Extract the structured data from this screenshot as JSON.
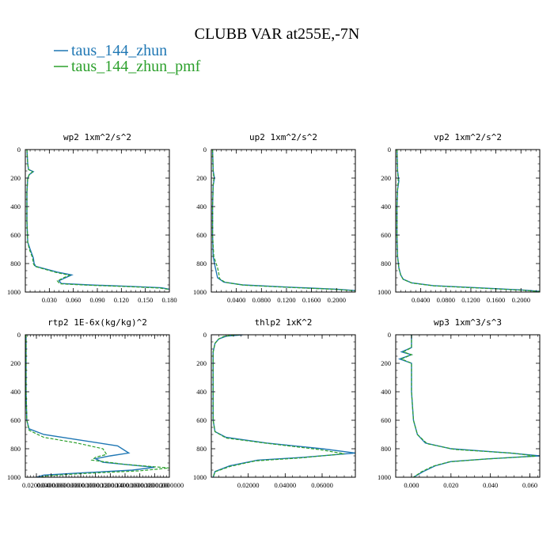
{
  "figure": {
    "title": "CLUBB VAR at255E,-7N",
    "legend": [
      {
        "label": "taus_144_zhun",
        "color": "#1f77b4",
        "dash": "solid"
      },
      {
        "label": "taus_144_zhun_pmf",
        "color": "#2ca02c",
        "dash": "dashed"
      }
    ]
  },
  "chart_data": [
    {
      "type": "line",
      "title": "wp2  1xm^2/s^2",
      "xlim": [
        0,
        0.18
      ],
      "ylim": [
        1000,
        0
      ],
      "y_inverted": true,
      "xticks": [
        0.03,
        0.06,
        0.09,
        0.12,
        0.15,
        0.18
      ],
      "xtick_labels": [
        "0.030",
        "0.060",
        "0.090",
        "0.120",
        "0.150",
        "0.180"
      ],
      "yticks": [
        0,
        200,
        400,
        600,
        800,
        1000
      ],
      "ytick_labels": [
        "0",
        "200",
        "400",
        "600",
        "800",
        "1000"
      ],
      "series": [
        {
          "name": "taus_144_zhun",
          "points": [
            [
              0.002,
              0
            ],
            [
              0.003,
              100
            ],
            [
              0.004,
              140
            ],
            [
              0.01,
              155
            ],
            [
              0.005,
              175
            ],
            [
              0.003,
              200
            ],
            [
              0.002,
              300
            ],
            [
              0.002,
              500
            ],
            [
              0.003,
              650
            ],
            [
              0.006,
              700
            ],
            [
              0.01,
              760
            ],
            [
              0.011,
              800
            ],
            [
              0.013,
              820
            ],
            [
              0.04,
              860
            ],
            [
              0.058,
              880
            ],
            [
              0.05,
              900
            ],
            [
              0.042,
              920
            ],
            [
              0.045,
              940
            ],
            [
              0.08,
              950
            ],
            [
              0.13,
              960
            ],
            [
              0.17,
              970
            ],
            [
              0.18,
              980
            ]
          ]
        },
        {
          "name": "taus_144_zhun_pmf",
          "points": [
            [
              0.002,
              0
            ],
            [
              0.003,
              100
            ],
            [
              0.004,
              140
            ],
            [
              0.009,
              155
            ],
            [
              0.005,
              175
            ],
            [
              0.003,
              200
            ],
            [
              0.002,
              300
            ],
            [
              0.002,
              500
            ],
            [
              0.003,
              650
            ],
            [
              0.005,
              700
            ],
            [
              0.009,
              760
            ],
            [
              0.01,
              800
            ],
            [
              0.012,
              820
            ],
            [
              0.038,
              862
            ],
            [
              0.055,
              882
            ],
            [
              0.047,
              902
            ],
            [
              0.04,
              922
            ],
            [
              0.043,
              942
            ],
            [
              0.078,
              952
            ],
            [
              0.128,
              962
            ],
            [
              0.168,
              972
            ],
            [
              0.18,
              982
            ]
          ]
        }
      ]
    },
    {
      "type": "line",
      "title": "up2  1xm^2/s^2",
      "xlim": [
        0,
        0.23
      ],
      "ylim": [
        1000,
        0
      ],
      "y_inverted": true,
      "xticks": [
        0.04,
        0.08,
        0.12,
        0.16,
        0.2
      ],
      "xtick_labels": [
        "0.0400",
        "0.0800",
        "0.1200",
        "0.1600",
        "0.2000"
      ],
      "yticks": [
        0,
        200,
        400,
        600,
        800,
        1000
      ],
      "ytick_labels": [
        "0",
        "200",
        "400",
        "600",
        "800",
        "1000"
      ],
      "series": [
        {
          "name": "taus_144_zhun",
          "points": [
            [
              0.002,
              0
            ],
            [
              0.003,
              150
            ],
            [
              0.005,
              200
            ],
            [
              0.003,
              250
            ],
            [
              0.002,
              400
            ],
            [
              0.002,
              600
            ],
            [
              0.003,
              750
            ],
            [
              0.006,
              820
            ],
            [
              0.008,
              860
            ],
            [
              0.01,
              900
            ],
            [
              0.02,
              930
            ],
            [
              0.05,
              950
            ],
            [
              0.12,
              965
            ],
            [
              0.2,
              980
            ],
            [
              0.23,
              990
            ]
          ]
        },
        {
          "name": "taus_144_zhun_pmf",
          "points": [
            [
              0.002,
              0
            ],
            [
              0.003,
              150
            ],
            [
              0.004,
              200
            ],
            [
              0.003,
              250
            ],
            [
              0.002,
              400
            ],
            [
              0.002,
              600
            ],
            [
              0.004,
              750
            ],
            [
              0.01,
              830
            ],
            [
              0.012,
              870
            ],
            [
              0.013,
              905
            ],
            [
              0.022,
              932
            ],
            [
              0.052,
              952
            ],
            [
              0.122,
              967
            ],
            [
              0.202,
              982
            ],
            [
              0.23,
              992
            ]
          ]
        }
      ]
    },
    {
      "type": "line",
      "title": "vp2  1xm^2/s^2",
      "xlim": [
        0,
        0.23
      ],
      "ylim": [
        1000,
        0
      ],
      "y_inverted": true,
      "xticks": [
        0.04,
        0.08,
        0.12,
        0.16,
        0.2
      ],
      "xtick_labels": [
        "0.0400",
        "0.0800",
        "0.1200",
        "0.1600",
        "0.2000"
      ],
      "yticks": [
        0,
        200,
        400,
        600,
        800,
        1000
      ],
      "ytick_labels": [
        "0",
        "200",
        "400",
        "600",
        "800",
        "1000"
      ],
      "series": [
        {
          "name": "taus_144_zhun",
          "points": [
            [
              0.002,
              0
            ],
            [
              0.003,
              150
            ],
            [
              0.005,
              220
            ],
            [
              0.003,
              280
            ],
            [
              0.002,
              400
            ],
            [
              0.002,
              600
            ],
            [
              0.003,
              750
            ],
            [
              0.005,
              830
            ],
            [
              0.008,
              880
            ],
            [
              0.012,
              910
            ],
            [
              0.025,
              935
            ],
            [
              0.06,
              955
            ],
            [
              0.13,
              970
            ],
            [
              0.2,
              985
            ],
            [
              0.23,
              995
            ]
          ]
        },
        {
          "name": "taus_144_zhun_pmf",
          "points": [
            [
              0.002,
              0
            ],
            [
              0.003,
              150
            ],
            [
              0.004,
              220
            ],
            [
              0.003,
              280
            ],
            [
              0.002,
              400
            ],
            [
              0.002,
              600
            ],
            [
              0.003,
              750
            ],
            [
              0.005,
              832
            ],
            [
              0.008,
              882
            ],
            [
              0.012,
              912
            ],
            [
              0.026,
              937
            ],
            [
              0.062,
              957
            ],
            [
              0.132,
              972
            ],
            [
              0.202,
              987
            ],
            [
              0.23,
              997
            ]
          ]
        }
      ]
    },
    {
      "type": "line",
      "title": "rtp2  1E-6x(kg/kg)^2",
      "xlim": [
        0.005,
        0.2
      ],
      "ylim": [
        1000,
        0
      ],
      "y_inverted": true,
      "xticks": [
        0.02,
        0.04,
        0.06,
        0.08,
        0.1,
        0.12,
        0.14,
        0.16,
        0.18,
        0.2
      ],
      "xtick_labels": [
        "0.0200000",
        "0.0400000",
        "0.0600000",
        "0.0800000",
        "0.1000000",
        "0.1200000",
        "0.1400000",
        "0.1600000",
        "0.1800000",
        "0.2000000"
      ],
      "yticks": [
        0,
        200,
        400,
        600,
        800,
        1000
      ],
      "ytick_labels": [
        "0",
        "200",
        "400",
        "600",
        "800",
        "1000"
      ],
      "series": [
        {
          "name": "taus_144_zhun",
          "points": [
            [
              0.006,
              0
            ],
            [
              0.006,
              400
            ],
            [
              0.007,
              600
            ],
            [
              0.01,
              660
            ],
            [
              0.03,
              700
            ],
            [
              0.08,
              740
            ],
            [
              0.13,
              780
            ],
            [
              0.145,
              830
            ],
            [
              0.12,
              850
            ],
            [
              0.1,
              870
            ],
            [
              0.11,
              895
            ],
            [
              0.18,
              930
            ],
            [
              0.15,
              950
            ],
            [
              0.08,
              970
            ],
            [
              0.03,
              985
            ],
            [
              0.02,
              1000
            ]
          ]
        },
        {
          "name": "taus_144_zhun_pmf",
          "points": [
            [
              0.006,
              0
            ],
            [
              0.006,
              400
            ],
            [
              0.007,
              600
            ],
            [
              0.01,
              670
            ],
            [
              0.03,
              720
            ],
            [
              0.075,
              760
            ],
            [
              0.11,
              800
            ],
            [
              0.115,
              840
            ],
            [
              0.1,
              860
            ],
            [
              0.095,
              880
            ],
            [
              0.14,
              910
            ],
            [
              0.2,
              935
            ],
            [
              0.16,
              955
            ],
            [
              0.08,
              975
            ],
            [
              0.035,
              990
            ],
            [
              0.025,
              1000
            ]
          ]
        }
      ]
    },
    {
      "type": "line",
      "title": "thlp2  1xK^2",
      "xlim": [
        0,
        0.078
      ],
      "ylim": [
        1000,
        0
      ],
      "y_inverted": true,
      "xticks": [
        0.02,
        0.04,
        0.06
      ],
      "xtick_labels": [
        "0.02000",
        "0.04000",
        "0.06000"
      ],
      "yticks": [
        0,
        200,
        400,
        600,
        800,
        1000
      ],
      "ytick_labels": [
        "0",
        "200",
        "400",
        "600",
        "800",
        "1000"
      ],
      "series": [
        {
          "name": "taus_144_zhun",
          "points": [
            [
              0.017,
              0
            ],
            [
              0.008,
              10
            ],
            [
              0.004,
              30
            ],
            [
              0.002,
              60
            ],
            [
              0.001,
              120
            ],
            [
              0.001,
              300
            ],
            [
              0.001,
              600
            ],
            [
              0.002,
              680
            ],
            [
              0.008,
              720
            ],
            [
              0.03,
              760
            ],
            [
              0.06,
              800
            ],
            [
              0.078,
              830
            ],
            [
              0.05,
              860
            ],
            [
              0.025,
              880
            ],
            [
              0.01,
              920
            ],
            [
              0.002,
              960
            ],
            [
              0.001,
              1000
            ]
          ]
        },
        {
          "name": "taus_144_zhun_pmf",
          "points": [
            [
              0.015,
              0
            ],
            [
              0.007,
              10
            ],
            [
              0.004,
              30
            ],
            [
              0.002,
              60
            ],
            [
              0.001,
              120
            ],
            [
              0.001,
              300
            ],
            [
              0.001,
              600
            ],
            [
              0.002,
              680
            ],
            [
              0.008,
              725
            ],
            [
              0.032,
              765
            ],
            [
              0.058,
              805
            ],
            [
              0.072,
              835
            ],
            [
              0.048,
              865
            ],
            [
              0.024,
              885
            ],
            [
              0.01,
              925
            ],
            [
              0.002,
              962
            ],
            [
              0.001,
              1000
            ]
          ]
        }
      ]
    },
    {
      "type": "line",
      "title": "wp3  1xm^3/s^3",
      "xlim": [
        -0.008,
        0.065
      ],
      "ylim": [
        1000,
        0
      ],
      "y_inverted": true,
      "xticks": [
        0.0,
        0.02,
        0.04,
        0.06
      ],
      "xtick_labels": [
        "0.000",
        "0.020",
        "0.040",
        "0.060"
      ],
      "yticks": [
        0,
        200,
        400,
        600,
        800,
        1000
      ],
      "ytick_labels": [
        "0",
        "200",
        "400",
        "600",
        "800",
        "1000"
      ],
      "series": [
        {
          "name": "taus_144_zhun",
          "points": [
            [
              0.0,
              0
            ],
            [
              0.0,
              90
            ],
            [
              -0.005,
              120
            ],
            [
              0.0,
              140
            ],
            [
              -0.006,
              170
            ],
            [
              0.0,
              200
            ],
            [
              0.0,
              400
            ],
            [
              0.001,
              600
            ],
            [
              0.003,
              700
            ],
            [
              0.007,
              760
            ],
            [
              0.02,
              800
            ],
            [
              0.05,
              830
            ],
            [
              0.065,
              850
            ],
            [
              0.04,
              870
            ],
            [
              0.02,
              890
            ],
            [
              0.012,
              920
            ],
            [
              0.006,
              960
            ],
            [
              0.001,
              1000
            ]
          ]
        },
        {
          "name": "taus_144_zhun_pmf",
          "points": [
            [
              0.0,
              0
            ],
            [
              0.0,
              90
            ],
            [
              -0.004,
              120
            ],
            [
              0.0,
              140
            ],
            [
              -0.005,
              170
            ],
            [
              0.0,
              200
            ],
            [
              0.0,
              400
            ],
            [
              0.001,
              600
            ],
            [
              0.003,
              700
            ],
            [
              0.008,
              765
            ],
            [
              0.022,
              805
            ],
            [
              0.052,
              832
            ],
            [
              0.063,
              852
            ],
            [
              0.038,
              872
            ],
            [
              0.019,
              892
            ],
            [
              0.011,
              922
            ],
            [
              0.005,
              962
            ],
            [
              0.001,
              1000
            ]
          ]
        }
      ]
    }
  ]
}
